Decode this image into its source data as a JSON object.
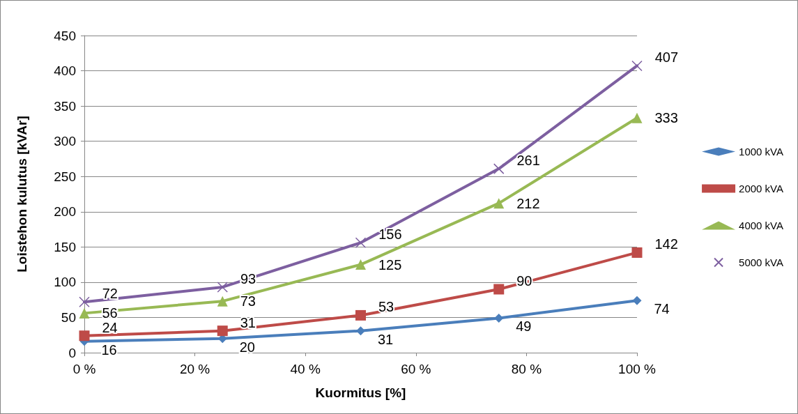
{
  "chart_data": {
    "type": "line",
    "xlabel": "Kuormitus [%]",
    "ylabel": "Loistehon kulutus [kVAr]",
    "x": [
      0,
      25,
      50,
      75,
      100
    ],
    "xlim": [
      0,
      100
    ],
    "xticks": [
      {
        "value": 0,
        "label": "0 %"
      },
      {
        "value": 20,
        "label": "20 %"
      },
      {
        "value": 40,
        "label": "40 %"
      },
      {
        "value": 60,
        "label": "60 %"
      },
      {
        "value": 80,
        "label": "80 %"
      },
      {
        "value": 100,
        "label": "100 %"
      }
    ],
    "ylim": [
      0,
      450
    ],
    "yticks": [
      0,
      50,
      100,
      150,
      200,
      250,
      300,
      350,
      400,
      450
    ],
    "grid": "y",
    "legend": "right",
    "data_labels": true,
    "series": [
      {
        "name": "1000 kVA",
        "color": "#4a7ebb",
        "marker": "diamond",
        "values": [
          16,
          20,
          31,
          49,
          74
        ]
      },
      {
        "name": "2000 kVA",
        "color": "#be4b48",
        "marker": "square",
        "values": [
          24,
          31,
          53,
          90,
          142
        ]
      },
      {
        "name": "4000 kVA",
        "color": "#98b954",
        "marker": "triangle",
        "values": [
          56,
          73,
          125,
          212,
          333
        ]
      },
      {
        "name": "5000 kVA",
        "color": "#7d5fa0",
        "marker": "cross",
        "values": [
          72,
          93,
          156,
          261,
          407
        ]
      }
    ]
  }
}
